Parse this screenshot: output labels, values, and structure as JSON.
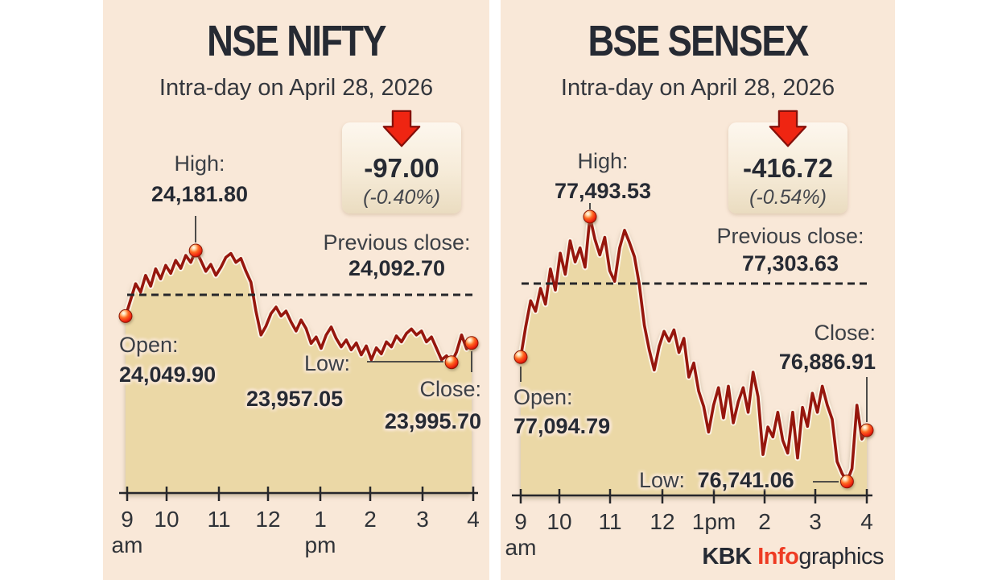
{
  "page": {
    "background": "#ffffff",
    "panel_background": "#f9e8d8"
  },
  "colors": {
    "line": "#96170f",
    "line_halo": "#fbf2e4",
    "fill": "#ebd8a6",
    "dashed": "#26272b",
    "axis": "#26272b",
    "marker": "#ff4a1c",
    "arrow_red": "#ef2512",
    "heading": "#262a33",
    "credit_accent": "#ee3b23"
  },
  "nifty": {
    "title": "NSE NIFTY",
    "subtitle": "Intra-day on April 28, 2026",
    "change": {
      "value": "-97.00",
      "percent": "(-0.40%)"
    },
    "previous_close": {
      "label": "Previous close:",
      "value": "24,092.70"
    },
    "high": {
      "label": "High:",
      "value": "24,181.80"
    },
    "open": {
      "label": "Open:",
      "value": "24,049.90"
    },
    "low": {
      "label": "Low:",
      "value": "23,957.05"
    },
    "close": {
      "label": "Close:",
      "value": "23,995.70"
    },
    "axis": {
      "ticks": [
        "9",
        "10",
        "11",
        "12",
        "1",
        "2",
        "3",
        "4"
      ],
      "am_label": "am",
      "pm_label": "pm"
    }
  },
  "sensex": {
    "title": "BSE SENSEX",
    "subtitle": "Intra-day on April 28, 2026",
    "change": {
      "value": "-416.72",
      "percent": "(-0.54%)"
    },
    "previous_close": {
      "label": "Previous close:",
      "value": "77,303.63"
    },
    "high": {
      "label": "High:",
      "value": "77,493.53"
    },
    "open": {
      "label": "Open:",
      "value": "77,094.79"
    },
    "low": {
      "label": "Low:",
      "value": "76,741.06"
    },
    "close": {
      "label": "Close:",
      "value": "76,886.91"
    },
    "axis": {
      "ticks": [
        "9",
        "10",
        "11",
        "12",
        "1pm",
        "2",
        "3",
        "4"
      ],
      "am_label": "am",
      "pm_label": ""
    }
  },
  "credit": {
    "kbk": "KBK ",
    "info": "Info",
    "graphics": "graphics"
  },
  "chart_data": [
    {
      "type": "line",
      "name": "NSE NIFTY intra-day, April 28, 2026",
      "x_axis": {
        "unit": "time",
        "range": [
          "9 am",
          "4 pm"
        ],
        "tick_labels": [
          "9 am",
          "10",
          "11",
          "12",
          "1 pm",
          "2",
          "3",
          "4"
        ]
      },
      "open": 24049.9,
      "high": 24181.8,
      "low": 23957.05,
      "close": 23995.7,
      "previous_close": 24092.7,
      "change": -97.0,
      "change_percent": -0.4,
      "marker_indices": {
        "open": 0,
        "high": 14,
        "low": 65,
        "close": 69
      },
      "values": [
        24049.9,
        24082,
        24115,
        24098,
        24132,
        24110,
        24145,
        24125,
        24152,
        24136,
        24162,
        24146,
        24172,
        24158,
        24181.8,
        24162,
        24140,
        24154,
        24132,
        24148,
        24168,
        24176,
        24158,
        24166,
        24140,
        24118,
        24060,
        24012,
        24030,
        24055,
        24068,
        24050,
        24060,
        24038,
        24020,
        24042,
        24025,
        23995,
        24008,
        23985,
        24012,
        24028,
        24005,
        23988,
        24002,
        23982,
        23996,
        23972,
        23990,
        23962,
        23986,
        23974,
        23998,
        23988,
        24010,
        23998,
        24015,
        24024,
        24012,
        24020,
        23998,
        24008,
        23985,
        23962,
        23970,
        23957.05,
        23978,
        24012,
        23984,
        23995.7
      ]
    },
    {
      "type": "line",
      "name": "BSE SENSEX intra-day, April 28, 2026",
      "x_axis": {
        "unit": "time",
        "range": [
          "9 am",
          "4 pm"
        ],
        "tick_labels": [
          "9 am",
          "10",
          "11",
          "12",
          "1pm",
          "2",
          "3",
          "4"
        ]
      },
      "open": 77094.79,
      "high": 77493.53,
      "low": 76741.06,
      "close": 76886.91,
      "previous_close": 77303.63,
      "change": -416.72,
      "change_percent": -0.54,
      "marker_indices": {
        "open": 0,
        "high": 14,
        "low": 66,
        "close": 70
      },
      "values": [
        77094.79,
        77180,
        77255,
        77225,
        77290,
        77245,
        77345,
        77285,
        77390,
        77330,
        77425,
        77365,
        77405,
        77350,
        77493.53,
        77430,
        77385,
        77435,
        77340,
        77310,
        77405,
        77455,
        77420,
        77380,
        77300,
        77185,
        77115,
        77058,
        77125,
        77168,
        77140,
        77172,
        77108,
        77148,
        77038,
        77078,
        76998,
        76955,
        76882,
        76958,
        77008,
        76922,
        77012,
        76908,
        76968,
        77008,
        76938,
        77052,
        76982,
        76818,
        76896,
        76868,
        76938,
        76858,
        76822,
        76938,
        76808,
        76952,
        76898,
        76992,
        76938,
        77012,
        76958,
        76918,
        76798,
        76764,
        76741.06,
        76778,
        76958,
        76862,
        76886.91
      ]
    }
  ]
}
